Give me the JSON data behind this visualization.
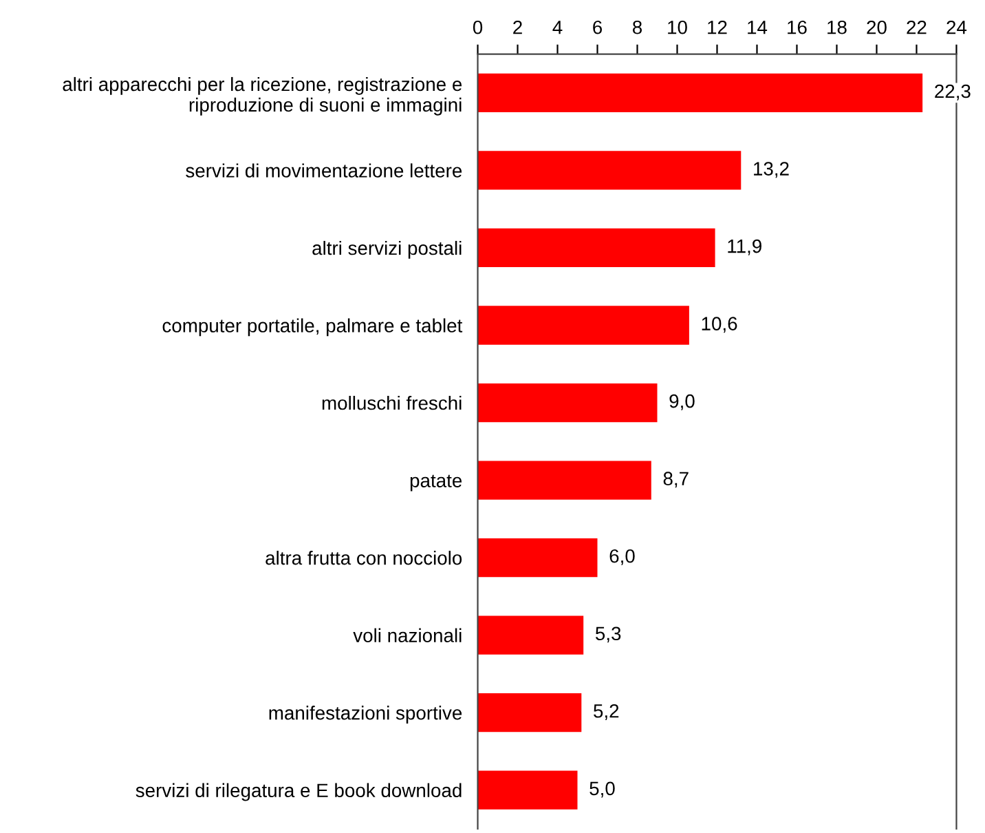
{
  "chart_data": {
    "type": "bar",
    "orientation": "horizontal",
    "categories": [
      "altri apparecchi per la ricezione, registrazione e\nriproduzione di suoni e immagini",
      "servizi di movimentazione lettere",
      "altri servizi postali",
      "computer portatile, palmare e tablet",
      "molluschi freschi",
      "patate",
      "altra frutta con nocciolo",
      "voli nazionali",
      "manifestazioni sportive",
      "servizi di rilegatura e E book download"
    ],
    "values": [
      22.3,
      13.2,
      11.9,
      10.6,
      9.0,
      8.7,
      6.0,
      5.3,
      5.2,
      5.0
    ],
    "value_labels": [
      "22,3",
      "13,2",
      "11,9",
      "10,6",
      "9,0",
      "8,7",
      "6,0",
      "5,3",
      "5,2",
      "5,0"
    ],
    "color": "#ff0000",
    "xlim": [
      0,
      24
    ],
    "xticks": [
      0,
      2,
      4,
      6,
      8,
      10,
      12,
      14,
      16,
      18,
      20,
      22,
      24
    ],
    "grid": false,
    "legend": false
  }
}
